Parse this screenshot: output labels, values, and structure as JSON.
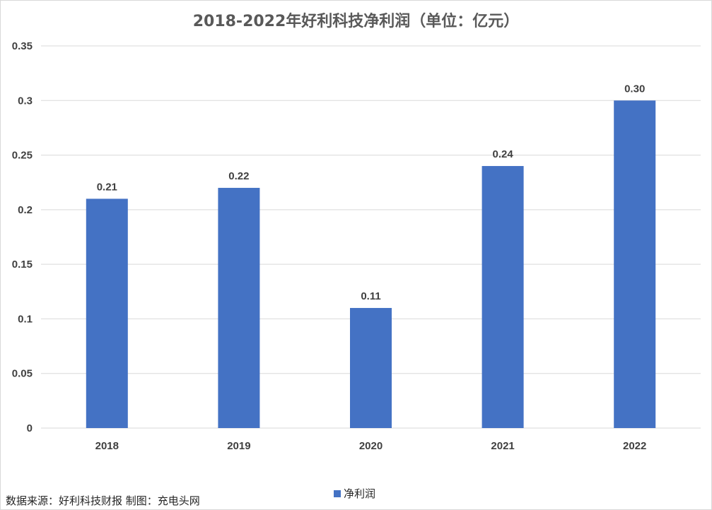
{
  "chart_data": {
    "type": "bar",
    "title": "2018-2022年好利科技净利润（单位：亿元）",
    "categories": [
      "2018",
      "2019",
      "2020",
      "2021",
      "2022"
    ],
    "series": [
      {
        "name": "净利润",
        "values": [
          0.21,
          0.22,
          0.11,
          0.24,
          0.3
        ],
        "data_labels": [
          "0.21",
          "0.22",
          "0.11",
          "0.24",
          "0.30"
        ],
        "color": "#4472c4"
      }
    ],
    "y_ticks": [
      "0",
      "0.05",
      "0.1",
      "0.15",
      "0.2",
      "0.25",
      "0.3",
      "0.35"
    ],
    "ylim": [
      0,
      0.35
    ],
    "grid": true,
    "legend_position": "bottom"
  },
  "footer": {
    "source": "数据来源：好利科技财报 制图：充电头网"
  },
  "colors": {
    "bar": "#4472c4",
    "grid": "#d9d9d9",
    "title": "#595959",
    "text": "#404040"
  }
}
